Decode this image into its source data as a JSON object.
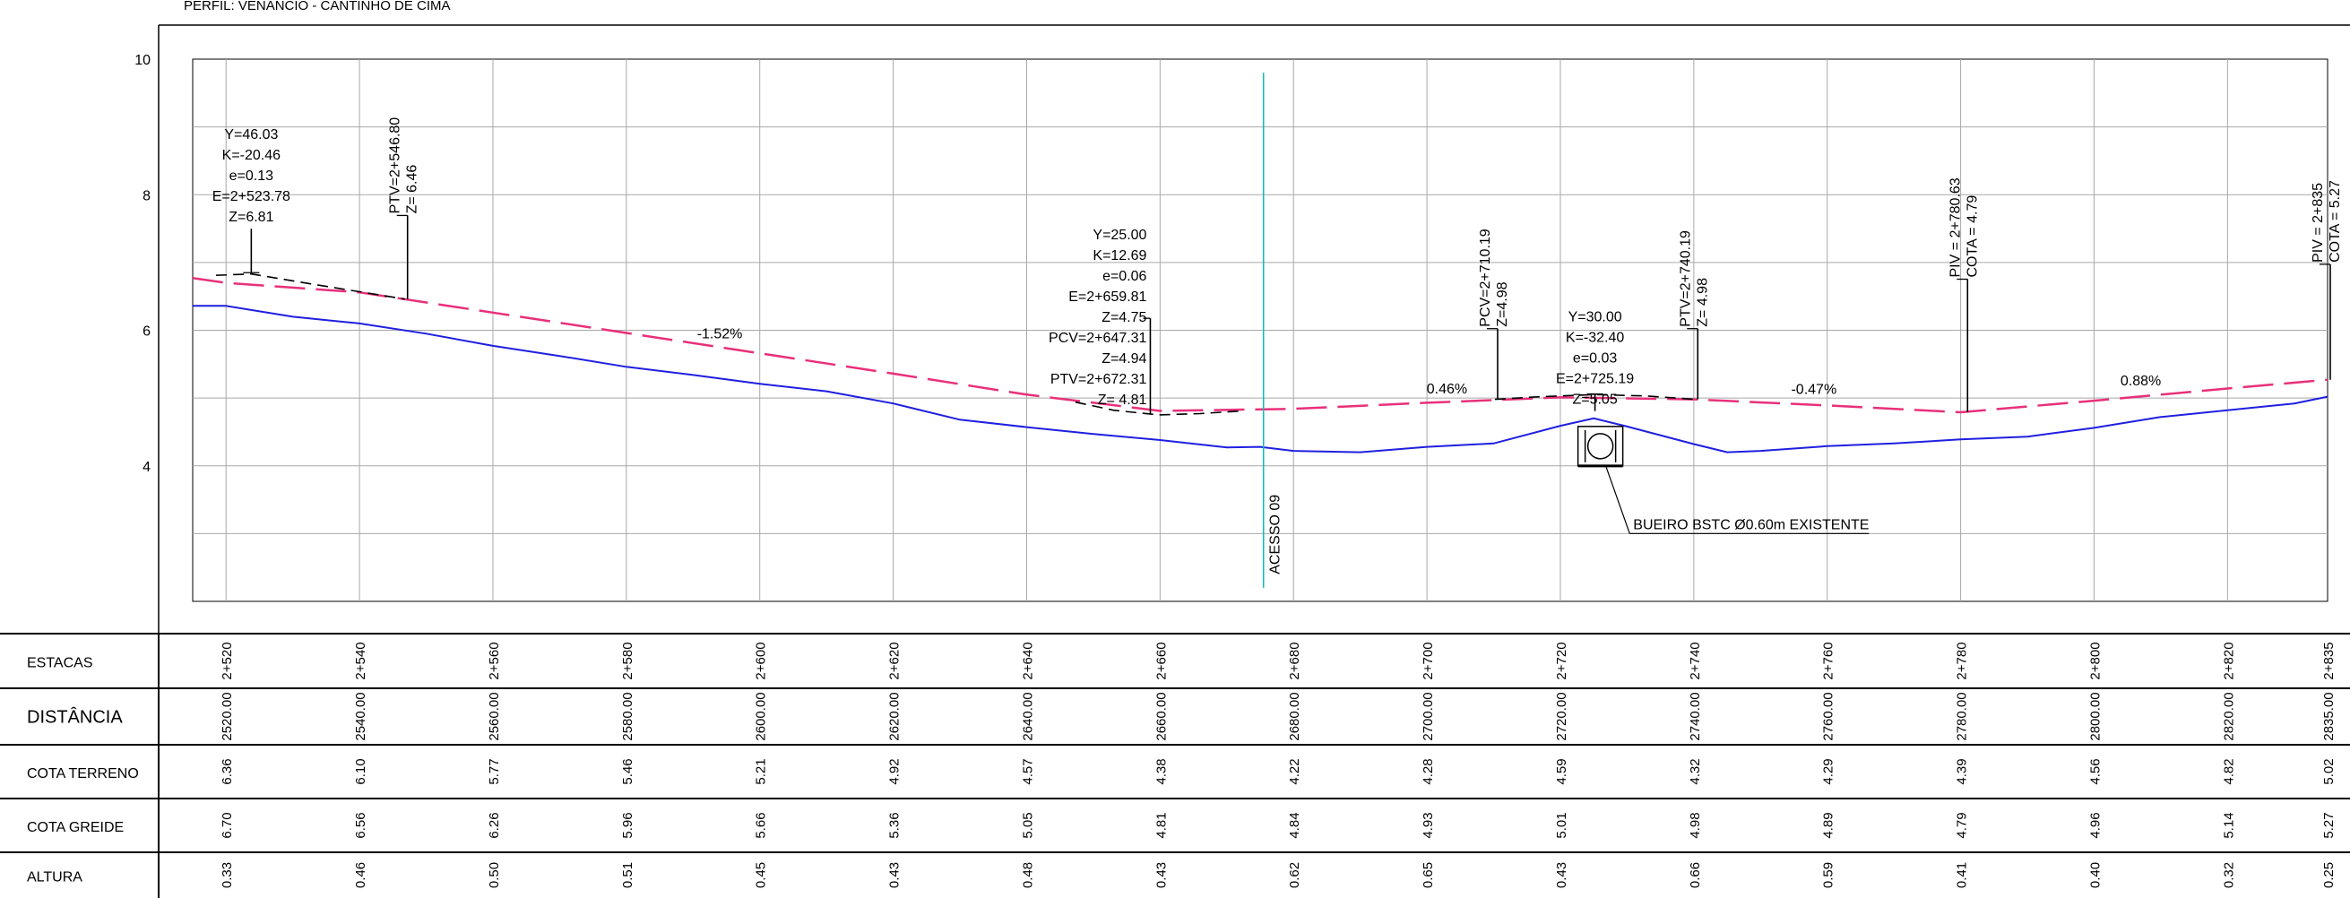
{
  "title": "PERFIL: VENÂNCIO - CANTINHO DE CIMA",
  "chart_data": {
    "type": "line",
    "xlim": [
      2515,
      2835
    ],
    "ylim": [
      2,
      10
    ],
    "y_ticks": [
      {
        "value": 10,
        "label": "10"
      },
      {
        "value": 8,
        "label": "8"
      },
      {
        "value": 6,
        "label": "6"
      },
      {
        "value": 4,
        "label": "4"
      }
    ],
    "grid": true,
    "terrain": {
      "color": "#1f1fe0",
      "points": [
        [
          2515,
          6.36
        ],
        [
          2520,
          6.36
        ],
        [
          2530,
          6.2
        ],
        [
          2540,
          6.1
        ],
        [
          2550,
          5.95
        ],
        [
          2560,
          5.77
        ],
        [
          2570,
          5.62
        ],
        [
          2580,
          5.46
        ],
        [
          2590,
          5.34
        ],
        [
          2600,
          5.21
        ],
        [
          2610,
          5.1
        ],
        [
          2620,
          4.92
        ],
        [
          2630,
          4.68
        ],
        [
          2640,
          4.57
        ],
        [
          2650,
          4.47
        ],
        [
          2660,
          4.38
        ],
        [
          2670,
          4.27
        ],
        [
          2675,
          4.28
        ],
        [
          2680,
          4.22
        ],
        [
          2690,
          4.2
        ],
        [
          2700,
          4.28
        ],
        [
          2710,
          4.33
        ],
        [
          2720,
          4.59
        ],
        [
          2725,
          4.7
        ],
        [
          2730,
          4.58
        ],
        [
          2740,
          4.32
        ],
        [
          2745,
          4.2
        ],
        [
          2750,
          4.22
        ],
        [
          2760,
          4.29
        ],
        [
          2770,
          4.33
        ],
        [
          2780,
          4.39
        ],
        [
          2790,
          4.43
        ],
        [
          2800,
          4.56
        ],
        [
          2810,
          4.72
        ],
        [
          2820,
          4.82
        ],
        [
          2830,
          4.92
        ],
        [
          2835,
          5.02
        ]
      ]
    },
    "grade": {
      "color": "#e8307a",
      "points": [
        [
          2515,
          6.77
        ],
        [
          2520,
          6.7
        ],
        [
          2540,
          6.56
        ],
        [
          2560,
          6.26
        ],
        [
          2580,
          5.96
        ],
        [
          2600,
          5.66
        ],
        [
          2620,
          5.36
        ],
        [
          2640,
          5.05
        ],
        [
          2660,
          4.81
        ],
        [
          2680,
          4.84
        ],
        [
          2700,
          4.93
        ],
        [
          2720,
          5.01
        ],
        [
          2740,
          4.98
        ],
        [
          2760,
          4.89
        ],
        [
          2780,
          4.79
        ],
        [
          2800,
          4.96
        ],
        [
          2820,
          5.14
        ],
        [
          2835,
          5.27
        ]
      ]
    },
    "curve_arcs": [
      [
        [
          2518.5,
          6.81
        ],
        [
          2523.78,
          6.83
        ],
        [
          2533,
          6.68
        ],
        [
          2546.8,
          6.46
        ]
      ],
      [
        [
          2647.31,
          4.94
        ],
        [
          2653,
          4.82
        ],
        [
          2659.81,
          4.75
        ],
        [
          2666,
          4.77
        ],
        [
          2672.31,
          4.81
        ]
      ],
      [
        [
          2710.19,
          4.98
        ],
        [
          2717,
          5.02
        ],
        [
          2725.19,
          5.05
        ],
        [
          2733,
          5.03
        ],
        [
          2740.19,
          4.98
        ]
      ]
    ],
    "slopes": [
      {
        "label": "-1.52%",
        "x": 2594,
        "y": 5.88
      },
      {
        "label": "0.46%",
        "x": 2703,
        "y": 5.07
      },
      {
        "label": "-0.47%",
        "x": 2758,
        "y": 5.06
      },
      {
        "label": "0.88%",
        "x": 2807,
        "y": 5.19
      }
    ],
    "curve_labels": [
      {
        "lines": [
          "Y=46.03",
          "K=-20.46",
          "e=0.13",
          "E=2+523.78",
          "Z=6.81"
        ],
        "x": 2523.78,
        "y_top": 8.82,
        "align": "middle",
        "leader_to": 6.85
      },
      {
        "lines": [
          "Y=25.00",
          "K=12.69",
          "e=0.06",
          "E=2+659.81",
          "Z=4.75"
        ],
        "x": 2658,
        "y_top": 7.34,
        "align": "end",
        "leader_to": 4.76
      },
      {
        "lines": [
          "PCV=2+647.31",
          "Z=4.94",
          "PTV=2+672.31",
          "Z= 4.81"
        ],
        "x": 2658,
        "y_top": 5.82,
        "align": "end"
      },
      {
        "lines": [
          "Y=30.00",
          "K=-32.40",
          "e=0.03",
          "E=2+725.19",
          "Z=5.05"
        ],
        "x": 2725.19,
        "y_top": 6.13,
        "align": "middle",
        "leader_to": 5.06
      }
    ],
    "vertical_labels": [
      {
        "lines": [
          "PTV=2+546.80",
          "Z= 6.46"
        ],
        "x": 2546.8,
        "y_base": 7.72,
        "leader_to": 6.46
      },
      {
        "lines": [
          "PCV=2+710.19",
          "Z=4.98"
        ],
        "x": 2710.19,
        "y_base": 6.05,
        "leader_to": 4.98
      },
      {
        "lines": [
          "PTV=2+740.19",
          "Z= 4.98"
        ],
        "x": 2740.19,
        "y_base": 6.05,
        "leader_to": 4.98
      },
      {
        "lines": [
          "PIV = 2+780.63",
          "COTA = 4.79"
        ],
        "x": 2780.63,
        "y_base": 6.78,
        "leader_to": 4.79
      },
      {
        "lines": [
          "PIV = 2+835",
          "COTA = 5.27"
        ],
        "x": 2835,
        "y_base": 7.0,
        "leader_to": 5.27
      }
    ],
    "access": {
      "label": "ACESSO 09",
      "x": 2675.5,
      "y_top": 9.8,
      "y_bottom": 2.2,
      "color": "#19b8b8"
    },
    "culvert": {
      "label": "BUEIRO BSTC Ø0.60m EXISTENTE",
      "x": 2726,
      "y": 4.29,
      "label_x": 2732,
      "label_y": 3.08
    }
  },
  "table": {
    "stations_x": [
      2520,
      2540,
      2560,
      2580,
      2600,
      2620,
      2640,
      2660,
      2680,
      2700,
      2720,
      2740,
      2760,
      2780,
      2800,
      2820,
      2835
    ],
    "rows": [
      {
        "label": "ESTACAS",
        "values": [
          "2+520",
          "2+540",
          "2+560",
          "2+580",
          "2+600",
          "2+620",
          "2+640",
          "2+660",
          "2+680",
          "2+700",
          "2+720",
          "2+740",
          "2+760",
          "2+780",
          "2+800",
          "2+820",
          "2+835"
        ]
      },
      {
        "label": "DISTÂNCIA",
        "values": [
          "2520.00",
          "2540.00",
          "2560.00",
          "2580.00",
          "2600.00",
          "2620.00",
          "2640.00",
          "2660.00",
          "2680.00",
          "2700.00",
          "2720.00",
          "2740.00",
          "2760.00",
          "2780.00",
          "2800.00",
          "2820.00",
          "2835.00"
        ]
      },
      {
        "label": "COTA TERRENO",
        "values": [
          "6.36",
          "6.10",
          "5.77",
          "5.46",
          "5.21",
          "4.92",
          "4.57",
          "4.38",
          "4.22",
          "4.28",
          "4.59",
          "4.32",
          "4.29",
          "4.39",
          "4.56",
          "4.82",
          "5.02"
        ]
      },
      {
        "label": "COTA GREIDE",
        "values": [
          "6.70",
          "6.56",
          "6.26",
          "5.96",
          "5.66",
          "5.36",
          "5.05",
          "4.81",
          "4.84",
          "4.93",
          "5.01",
          "4.98",
          "4.89",
          "4.79",
          "4.96",
          "5.14",
          "5.27"
        ]
      },
      {
        "label": "ALTURA",
        "values": [
          "0.33",
          "0.46",
          "0.50",
          "0.51",
          "0.45",
          "0.43",
          "0.48",
          "0.43",
          "0.62",
          "0.65",
          "0.43",
          "0.66",
          "0.59",
          "0.41",
          "0.40",
          "0.32",
          "0.25"
        ]
      }
    ]
  }
}
